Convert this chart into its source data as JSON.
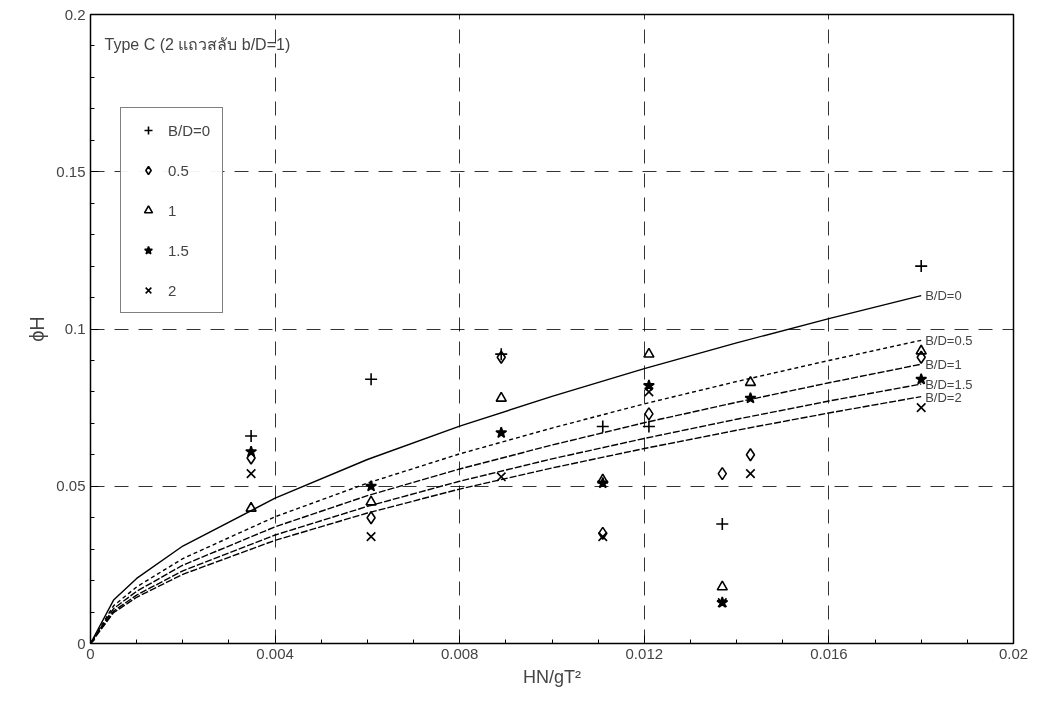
{
  "chart_data": {
    "type": "scatter",
    "xlabel": "HN/gT²",
    "ylabel": "ϕH",
    "annotations": [
      "Type C (2 แถวสลับ b/D=1)"
    ],
    "xlim": [
      0,
      0.02
    ],
    "ylim": [
      0,
      0.2
    ],
    "xticks": [
      0,
      0.004,
      0.008,
      0.012,
      0.016,
      0.02
    ],
    "yticks": [
      0,
      0.05,
      0.1,
      0.15,
      0.2
    ],
    "grid": true,
    "legend": "top left",
    "series": [
      {
        "name": "B/D=0",
        "color": "#000000",
        "marker": "cross",
        "x": [
          0.00348,
          0.00608,
          0.0089,
          0.0111,
          0.0121,
          0.01369,
          0.018
        ],
        "values": [
          0.066,
          0.084,
          0.092,
          0.069,
          0.069,
          0.038,
          0.12
        ]
      },
      {
        "name": "0.5",
        "color": "#000000",
        "marker": "diamond",
        "x": [
          0.00348,
          0.00608,
          0.0089,
          0.0111,
          0.0121,
          0.01369,
          0.0143,
          0.018
        ],
        "values": [
          0.059,
          0.04,
          0.091,
          0.035,
          0.073,
          0.054,
          0.06,
          0.091
        ]
      },
      {
        "name": "1",
        "color": "#000000",
        "marker": "triangle",
        "x": [
          0.00348,
          0.00608,
          0.0089,
          0.0111,
          0.0121,
          0.01369,
          0.0143,
          0.018
        ],
        "values": [
          0.043,
          0.045,
          0.078,
          0.052,
          0.092,
          0.018,
          0.083,
          0.093
        ]
      },
      {
        "name": "1.5",
        "color": "#000000",
        "marker": "star",
        "x": [
          0.00348,
          0.00608,
          0.0089,
          0.0111,
          0.0121,
          0.01369,
          0.0143,
          0.018
        ],
        "values": [
          0.061,
          0.05,
          0.067,
          0.051,
          0.082,
          0.013,
          0.078,
          0.084
        ]
      },
      {
        "name": "2",
        "color": "#000000",
        "marker": "x",
        "x": [
          0,
          0.00348,
          0.00608,
          0.0089,
          0.0111,
          0.0121,
          0.01369,
          0.0143,
          0.018
        ],
        "values": [
          0,
          0.054,
          0.034,
          0.053,
          0.034,
          0.08,
          0.013,
          0.054,
          0.075
        ]
      },
      {
        "type": "line",
        "name": "B/D=0",
        "color": "#000000",
        "line_style": "solid",
        "x": [
          0,
          0.0005,
          0.001,
          0.002,
          0.004,
          0.006,
          0.008,
          0.01,
          0.012,
          0.014,
          0.016,
          0.018
        ],
        "values": [
          0,
          0.0138,
          0.0207,
          0.031,
          0.0462,
          0.0585,
          0.0691,
          0.0786,
          0.0874,
          0.0956,
          0.1033,
          0.1106
        ]
      },
      {
        "type": "line",
        "name": "B/D=0.5",
        "color": "#000000",
        "line_style": "dotted",
        "x": [
          0,
          0.0005,
          0.001,
          0.002,
          0.004,
          0.006,
          0.008,
          0.01,
          0.012,
          0.014,
          0.016,
          0.018
        ],
        "values": [
          0,
          0.012,
          0.018,
          0.027,
          0.0403,
          0.051,
          0.0603,
          0.0685,
          0.0762,
          0.0833,
          0.09,
          0.0964
        ]
      },
      {
        "type": "line",
        "name": "B/D=1",
        "color": "#000000",
        "line_style": "dashed",
        "x": [
          0,
          0.0005,
          0.001,
          0.002,
          0.004,
          0.006,
          0.008,
          0.01,
          0.012,
          0.014,
          0.016,
          0.018
        ],
        "values": [
          0,
          0.0111,
          0.0166,
          0.0249,
          0.0371,
          0.047,
          0.0555,
          0.0631,
          0.0702,
          0.0767,
          0.0829,
          0.0888
        ]
      },
      {
        "type": "line",
        "name": "B/D=1.5",
        "color": "#000000",
        "line_style": "dashed",
        "x": [
          0,
          0.0005,
          0.001,
          0.002,
          0.004,
          0.006,
          0.008,
          0.01,
          0.012,
          0.014,
          0.016,
          0.018
        ],
        "values": [
          0,
          0.0103,
          0.0154,
          0.0231,
          0.0345,
          0.0436,
          0.0516,
          0.0587,
          0.0652,
          0.0713,
          0.0771,
          0.0825
        ]
      },
      {
        "type": "line",
        "name": "B/D=2",
        "color": "#000000",
        "line_style": "dashed",
        "x": [
          0,
          0.0005,
          0.001,
          0.002,
          0.004,
          0.006,
          0.008,
          0.01,
          0.012,
          0.014,
          0.016,
          0.018
        ],
        "values": [
          0,
          0.0098,
          0.0147,
          0.022,
          0.0328,
          0.0415,
          0.0491,
          0.0558,
          0.062,
          0.0678,
          0.0733,
          0.0785
        ]
      }
    ]
  }
}
